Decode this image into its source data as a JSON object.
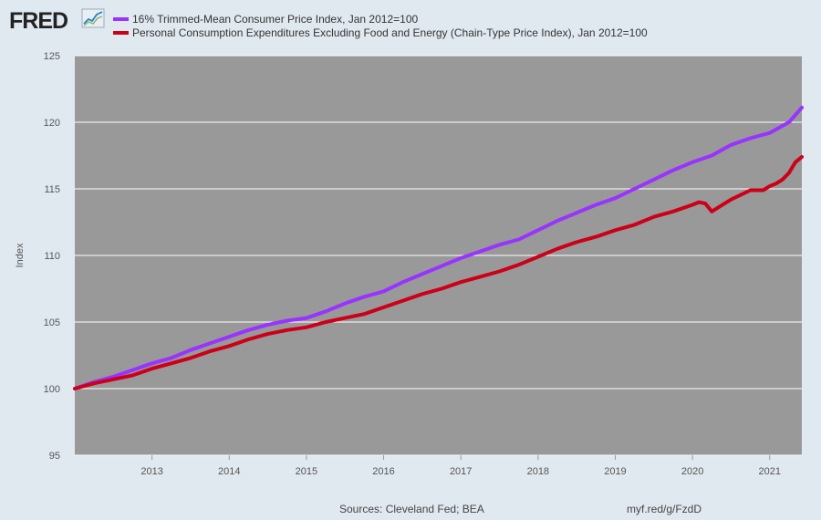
{
  "header": {
    "logo_text": "FRED",
    "logo_icon": "line-chart-icon"
  },
  "footer": {
    "sources": "Sources: Cleveland Fed; BEA",
    "short_url": "myf.red/g/FzdD"
  },
  "colors": {
    "page_bg": "#e1e9f0",
    "plot_bg": "#999999",
    "grid": "#ffffff",
    "trimmed_mean": "#9933ff",
    "pce_core": "#cc0018"
  },
  "chart_data": {
    "type": "line",
    "title": "",
    "xlabel": "",
    "ylabel": "Index",
    "xlim": [
      "2012-01",
      "2021-06"
    ],
    "ylim": [
      95,
      125
    ],
    "yticks": [
      "95",
      "100",
      "105",
      "110",
      "115",
      "120",
      "125"
    ],
    "xticks": [
      "2013",
      "2014",
      "2015",
      "2016",
      "2017",
      "2018",
      "2019",
      "2020",
      "2021"
    ],
    "grid": true,
    "legend_position": "top-left",
    "series": [
      {
        "name": "16% Trimmed-Mean Consumer Price Index, Jan 2012=100",
        "color": "#9933ff",
        "points": [
          [
            "2012-01",
            100.0
          ],
          [
            "2012-04",
            100.5
          ],
          [
            "2012-07",
            100.9
          ],
          [
            "2012-10",
            101.4
          ],
          [
            "2013-01",
            101.9
          ],
          [
            "2013-04",
            102.3
          ],
          [
            "2013-07",
            102.9
          ],
          [
            "2013-10",
            103.4
          ],
          [
            "2014-01",
            103.9
          ],
          [
            "2014-04",
            104.4
          ],
          [
            "2014-07",
            104.8
          ],
          [
            "2014-10",
            105.1
          ],
          [
            "2015-01",
            105.3
          ],
          [
            "2015-04",
            105.8
          ],
          [
            "2015-07",
            106.4
          ],
          [
            "2015-10",
            106.9
          ],
          [
            "2016-01",
            107.3
          ],
          [
            "2016-04",
            108.0
          ],
          [
            "2016-07",
            108.6
          ],
          [
            "2016-10",
            109.2
          ],
          [
            "2017-01",
            109.8
          ],
          [
            "2017-04",
            110.3
          ],
          [
            "2017-07",
            110.8
          ],
          [
            "2017-10",
            111.2
          ],
          [
            "2018-01",
            111.9
          ],
          [
            "2018-04",
            112.6
          ],
          [
            "2018-07",
            113.2
          ],
          [
            "2018-10",
            113.8
          ],
          [
            "2019-01",
            114.3
          ],
          [
            "2019-04",
            115.0
          ],
          [
            "2019-07",
            115.7
          ],
          [
            "2019-10",
            116.4
          ],
          [
            "2020-01",
            117.0
          ],
          [
            "2020-04",
            117.5
          ],
          [
            "2020-07",
            118.3
          ],
          [
            "2020-10",
            118.8
          ],
          [
            "2021-01",
            119.2
          ],
          [
            "2021-04",
            120.0
          ],
          [
            "2021-06",
            121.1
          ]
        ]
      },
      {
        "name": "Personal Consumption Expenditures Excluding Food and Energy (Chain-Type Price Index), Jan 2012=100",
        "color": "#cc0018",
        "points": [
          [
            "2012-01",
            100.0
          ],
          [
            "2012-04",
            100.4
          ],
          [
            "2012-07",
            100.7
          ],
          [
            "2012-10",
            101.0
          ],
          [
            "2013-01",
            101.5
          ],
          [
            "2013-04",
            101.9
          ],
          [
            "2013-07",
            102.3
          ],
          [
            "2013-10",
            102.8
          ],
          [
            "2014-01",
            103.2
          ],
          [
            "2014-04",
            103.7
          ],
          [
            "2014-07",
            104.1
          ],
          [
            "2014-10",
            104.4
          ],
          [
            "2015-01",
            104.6
          ],
          [
            "2015-04",
            105.0
          ],
          [
            "2015-07",
            105.3
          ],
          [
            "2015-10",
            105.6
          ],
          [
            "2016-01",
            106.1
          ],
          [
            "2016-04",
            106.6
          ],
          [
            "2016-07",
            107.1
          ],
          [
            "2016-10",
            107.5
          ],
          [
            "2017-01",
            108.0
          ],
          [
            "2017-04",
            108.4
          ],
          [
            "2017-07",
            108.8
          ],
          [
            "2017-10",
            109.3
          ],
          [
            "2018-01",
            109.9
          ],
          [
            "2018-04",
            110.5
          ],
          [
            "2018-07",
            111.0
          ],
          [
            "2018-10",
            111.4
          ],
          [
            "2019-01",
            111.9
          ],
          [
            "2019-04",
            112.3
          ],
          [
            "2019-07",
            112.9
          ],
          [
            "2019-10",
            113.3
          ],
          [
            "2020-01",
            113.8
          ],
          [
            "2020-02",
            114.0
          ],
          [
            "2020-03",
            113.9
          ],
          [
            "2020-04",
            113.3
          ],
          [
            "2020-05",
            113.6
          ],
          [
            "2020-07",
            114.2
          ],
          [
            "2020-10",
            114.9
          ],
          [
            "2020-12",
            114.9
          ],
          [
            "2021-01",
            115.2
          ],
          [
            "2021-02",
            115.4
          ],
          [
            "2021-03",
            115.7
          ],
          [
            "2021-04",
            116.2
          ],
          [
            "2021-05",
            117.0
          ],
          [
            "2021-06",
            117.4
          ]
        ]
      }
    ]
  }
}
